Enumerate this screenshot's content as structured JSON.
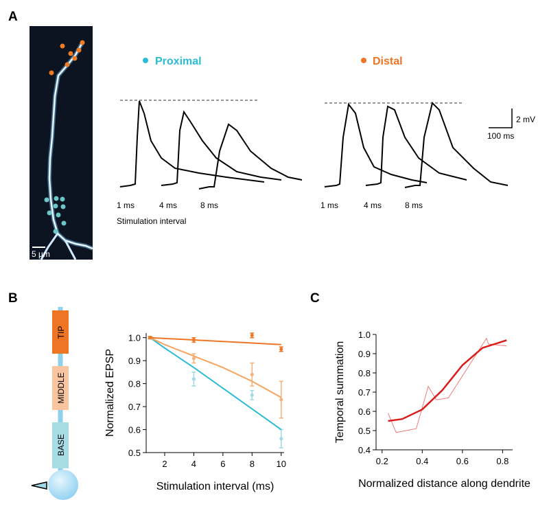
{
  "panels": {
    "a": "A",
    "b": "B",
    "c": "C"
  },
  "panel_a": {
    "image_scale_bar": "5 µm",
    "legend": [
      "Proximal",
      "Distal"
    ],
    "proximal_intervals": [
      "1 ms",
      "4 ms",
      "8 ms"
    ],
    "distal_intervals": [
      "1 ms",
      "4 ms",
      "8 ms"
    ],
    "interval_label": "Stimulation interval",
    "scale_voltage": "2 mV",
    "scale_time": "100 ms"
  },
  "schematic": {
    "labels": [
      "TIP",
      "MIDDLE",
      "BASE"
    ]
  },
  "chart_data": [
    {
      "type": "line",
      "x_label": "Stimulation interval (ms)",
      "y_label": "Normalized EPSP",
      "xlim": [
        0.73,
        10.2
      ],
      "xticks": [
        2,
        4,
        6,
        8,
        10
      ],
      "ylim": [
        0.5,
        1.02
      ],
      "yticks": [
        0.5,
        0.6,
        0.7,
        0.8,
        0.9,
        {
          "value": 1,
          "label": "1.0"
        }
      ],
      "series": [
        {
          "color": "#9fd9e4",
          "mode": "markers",
          "x": [
            1,
            4,
            8,
            10
          ],
          "values": [
            1.0,
            0.82,
            0.75,
            0.56
          ],
          "errors": [
            0.005,
            0.03,
            0.02,
            0.04
          ]
        },
        {
          "color": "#f7b07a",
          "mode": "markers",
          "x": [
            1,
            4,
            8,
            10
          ],
          "values": [
            1.0,
            0.91,
            0.84,
            0.73
          ],
          "errors": [
            0.005,
            0.02,
            0.05,
            0.08
          ]
        },
        {
          "color": "#ee7523",
          "mode": "markers",
          "x": [
            1,
            4,
            8,
            10
          ],
          "values": [
            1.0,
            0.99,
            1.01,
            0.95
          ],
          "errors": [
            0.005,
            0.01,
            0.01,
            0.01
          ]
        },
        {
          "color": "#2bbcd4",
          "mode": "line",
          "x": [
            1,
            2,
            4,
            6,
            8,
            10
          ],
          "values": [
            1.0,
            0.955,
            0.87,
            0.78,
            0.69,
            0.6
          ]
        },
        {
          "color": "#f7a45e",
          "mode": "line",
          "x": [
            1,
            2,
            4,
            6,
            8,
            10
          ],
          "values": [
            1.0,
            0.97,
            0.92,
            0.87,
            0.81,
            0.74
          ]
        },
        {
          "color": "#ee7523",
          "mode": "line",
          "x": [
            1,
            10
          ],
          "values": [
            1.0,
            0.97
          ]
        }
      ]
    },
    {
      "type": "line",
      "x_label": "Normalized distance along dendrite",
      "y_label": "Temporal summation",
      "xlim": [
        0.17,
        0.85
      ],
      "xticks": [
        0.2,
        0.4,
        0.6,
        0.8
      ],
      "ylim": [
        0.4,
        1.0
      ],
      "yticks": [
        0.4,
        0.5,
        0.6,
        0.7,
        0.8,
        0.9,
        {
          "value": 1,
          "label": "1.0"
        }
      ],
      "series": [
        {
          "color": "#f07a7a",
          "mode": "line",
          "width": 1,
          "x": [
            0.23,
            0.27,
            0.37,
            0.43,
            0.47,
            0.53,
            0.72,
            0.73,
            0.82
          ],
          "values": [
            0.59,
            0.49,
            0.51,
            0.73,
            0.66,
            0.67,
            0.98,
            0.95,
            0.94
          ]
        },
        {
          "color": "#d91c1c",
          "mode": "line",
          "width": 2.5,
          "x": [
            0.23,
            0.3,
            0.4,
            0.5,
            0.6,
            0.7,
            0.82
          ],
          "values": [
            0.55,
            0.56,
            0.61,
            0.71,
            0.84,
            0.93,
            0.97
          ]
        }
      ]
    }
  ]
}
